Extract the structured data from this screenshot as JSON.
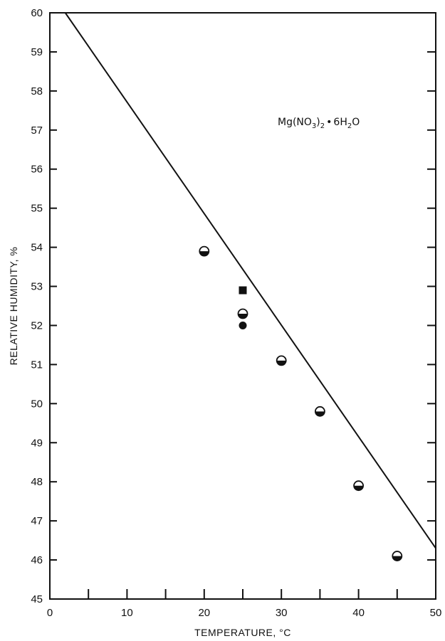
{
  "chart_data": {
    "type": "scatter",
    "xlabel": "TEMPERATURE, °C",
    "ylabel": "RELATIVE HUMIDITY, %",
    "xlim": [
      0,
      50
    ],
    "ylim": [
      45,
      60
    ],
    "x_ticks": [
      0,
      10,
      20,
      30,
      40,
      50
    ],
    "y_ticks": [
      45,
      46,
      47,
      48,
      49,
      50,
      51,
      52,
      53,
      54,
      55,
      56,
      57,
      58,
      59,
      60
    ],
    "annotation": {
      "prefix": "Mg(NO",
      "sub1": "3",
      "mid": ")",
      "sub2": "2",
      "dot": "•",
      "coef": "6H",
      "sub3": "2",
      "suffix": "O"
    },
    "line": {
      "x": [
        2,
        50
      ],
      "y": [
        60,
        46.3
      ]
    },
    "series": [
      {
        "marker": "half-filled-circle",
        "points": [
          {
            "x": 20,
            "y": 53.9
          },
          {
            "x": 25,
            "y": 52.3
          },
          {
            "x": 30,
            "y": 51.1
          },
          {
            "x": 35,
            "y": 49.8
          },
          {
            "x": 40,
            "y": 47.9
          },
          {
            "x": 45,
            "y": 46.1
          }
        ]
      },
      {
        "marker": "filled-square",
        "points": [
          {
            "x": 25,
            "y": 52.9
          }
        ]
      },
      {
        "marker": "filled-circle",
        "points": [
          {
            "x": 25,
            "y": 52.0
          }
        ]
      }
    ]
  }
}
